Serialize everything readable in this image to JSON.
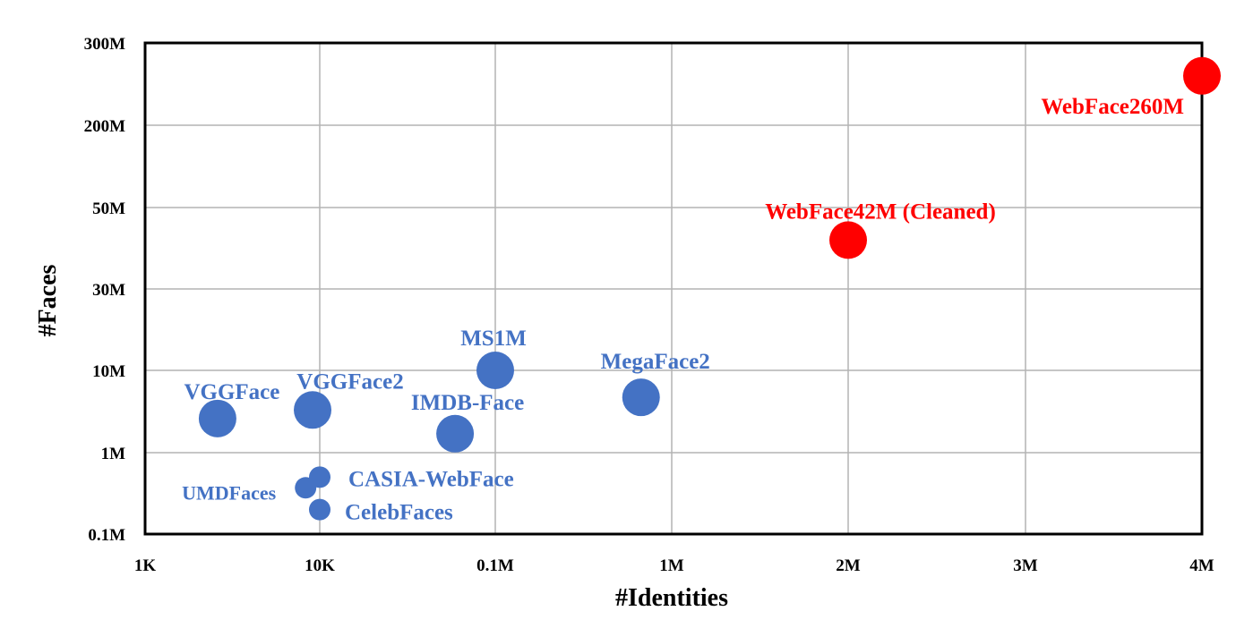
{
  "chart_data": {
    "type": "scatter",
    "title": "",
    "xlabel": "#Identities",
    "ylabel": "#Faces",
    "x_axis_scale": "ordinal (non-uniform) tick positions",
    "y_axis_scale": "ordinal (non-uniform) tick positions",
    "xticks": [
      "1K",
      "10K",
      "0.1M",
      "1M",
      "2M",
      "3M",
      "4M"
    ],
    "yticks": [
      "0.1M",
      "1M",
      "10M",
      "30M",
      "50M",
      "200M",
      "300M"
    ],
    "grid": true,
    "legend": "none",
    "colors": {
      "existing": "#4472c4",
      "new": "#ff0000"
    },
    "points": [
      {
        "label": "VGGFace",
        "identities": "2.6K",
        "faces": "2.6M",
        "group": "existing",
        "size": "large"
      },
      {
        "label": "VGGFace2",
        "identities": "9.1K",
        "faces": "3.3M",
        "group": "existing",
        "size": "large"
      },
      {
        "label": "MS1M",
        "identities": "0.1M",
        "faces": "10M",
        "group": "existing",
        "size": "large"
      },
      {
        "label": "IMDB-Face",
        "identities": "59K",
        "faces": "1.7M",
        "group": "existing",
        "size": "large"
      },
      {
        "label": "MegaFace2",
        "identities": "0.67M",
        "faces": "4.7M",
        "group": "existing",
        "size": "large"
      },
      {
        "label": "CASIA-WebFace",
        "identities": "10K",
        "faces": "0.5M",
        "group": "existing",
        "size": "small"
      },
      {
        "label": "UMDFaces",
        "identities": "8.3K",
        "faces": "0.37M",
        "group": "existing",
        "size": "small"
      },
      {
        "label": "CelebFaces",
        "identities": "10K",
        "faces": "0.2M",
        "group": "existing",
        "size": "small"
      },
      {
        "label": "WebFace42M (Cleaned)",
        "identities": "2M",
        "faces": "42M",
        "group": "new",
        "size": "large"
      },
      {
        "label": "WebFace260M",
        "identities": "4M",
        "faces": "260M",
        "group": "new",
        "size": "large"
      }
    ]
  }
}
